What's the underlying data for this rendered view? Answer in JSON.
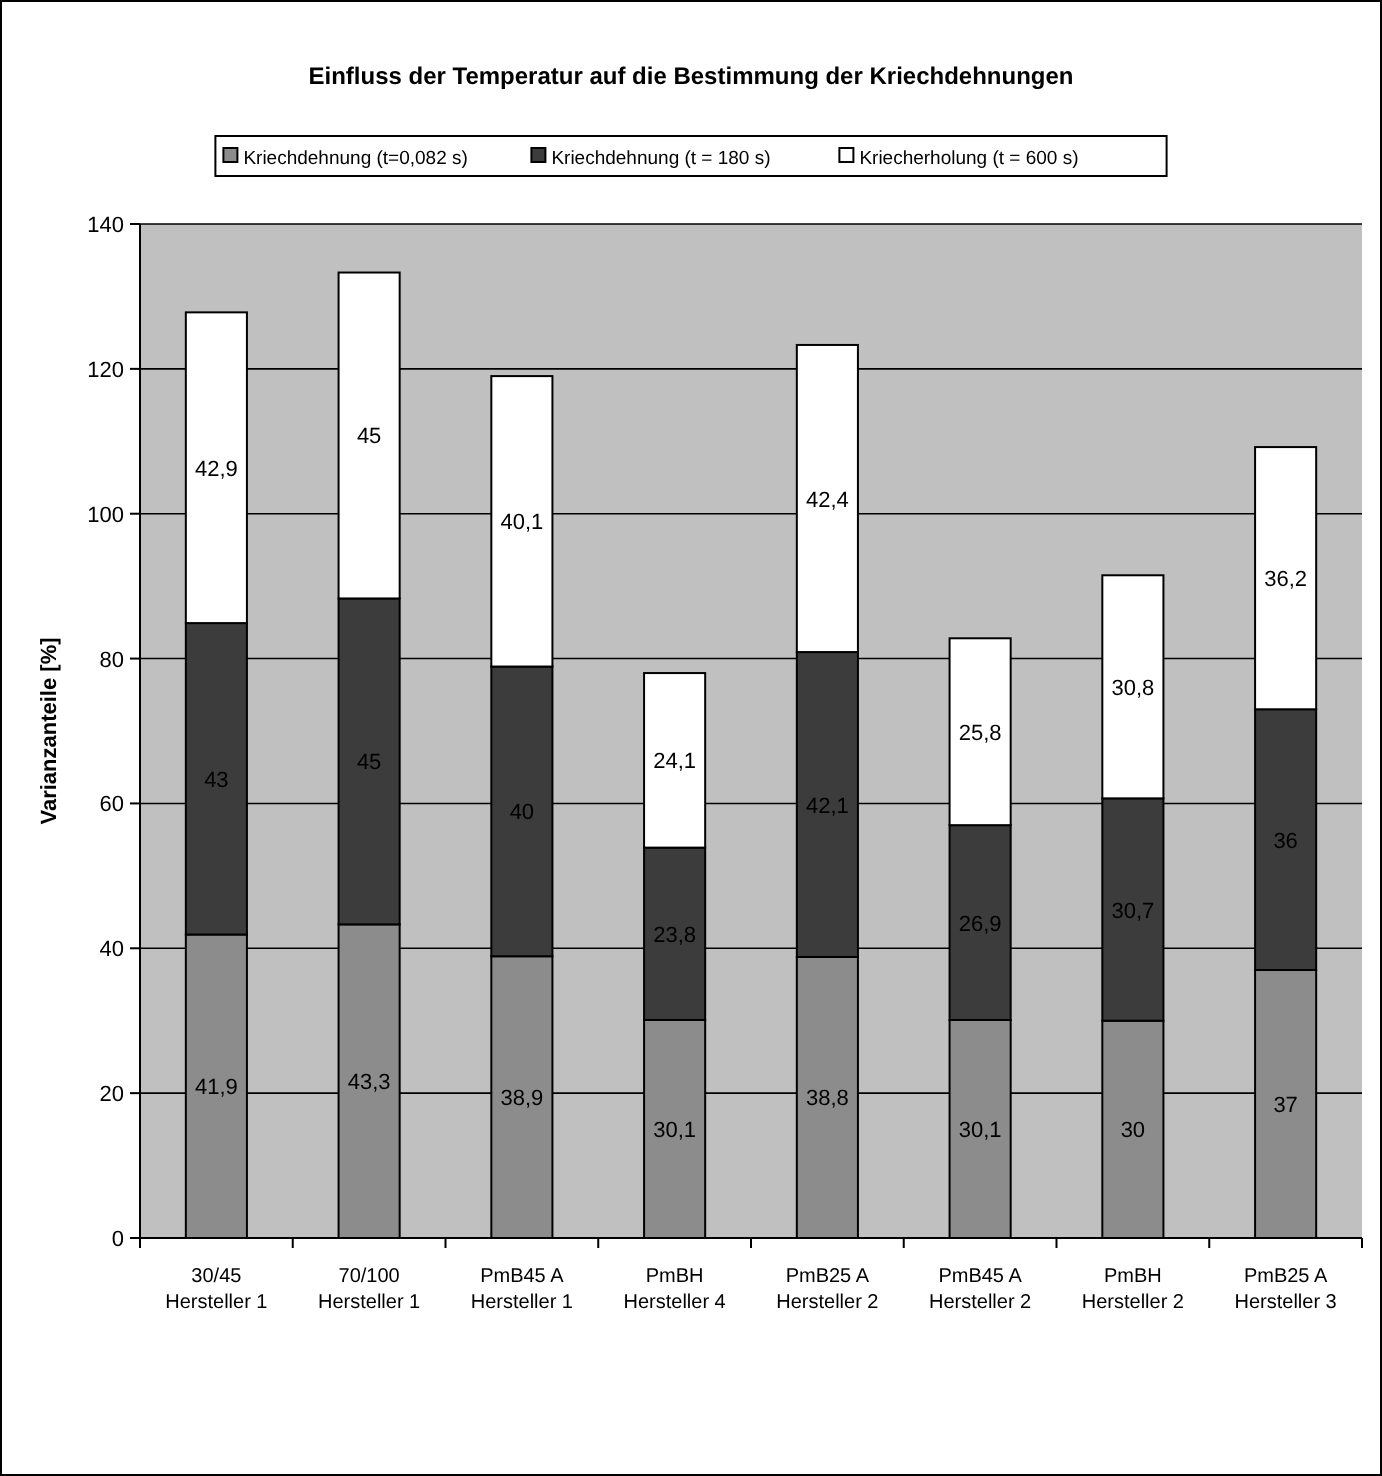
{
  "chart_data": {
    "type": "bar",
    "stacked": true,
    "title": "Einfluss der Temperatur auf die Bestimmung der Kriechdehnungen",
    "ylabel": "Varianzanteile [%]",
    "categories": [
      "30/45\nHersteller 1",
      "70/100\nHersteller 1",
      "PmB45 A\nHersteller 1",
      "PmBH\nHersteller 4",
      "PmB25 A\nHersteller 2",
      "PmB45 A\nHersteller 2",
      "PmBH\nHersteller 2",
      "PmB25 A\nHersteller 3"
    ],
    "series": [
      {
        "name": "Kriechdehnung (t=0,082 s)",
        "color": "#8c8c8c",
        "values": [
          41.9,
          43.3,
          38.9,
          30.1,
          38.8,
          30.1,
          30,
          37
        ],
        "value_labels": [
          "41,9",
          "43,3",
          "38,9",
          "30,1",
          "38,8",
          "30,1",
          "30",
          "37"
        ]
      },
      {
        "name": "Kriechdehnung (t = 180 s)",
        "color": "#3c3c3c",
        "values": [
          43,
          45,
          40,
          23.8,
          42.1,
          26.9,
          30.7,
          36
        ],
        "value_labels": [
          "43",
          "45",
          "40",
          "23,8",
          "42,1",
          "26,9",
          "30,7",
          "36"
        ]
      },
      {
        "name": "Kriecherholung (t = 600 s)",
        "color": "#ffffff",
        "values": [
          42.9,
          45,
          40.1,
          24.1,
          42.4,
          25.8,
          30.8,
          36.2
        ],
        "value_labels": [
          "42,9",
          "45",
          "40,1",
          "24,1",
          "42,4",
          "25,8",
          "30,8",
          "36,2"
        ]
      }
    ],
    "ylim": [
      0,
      140
    ],
    "yticks": [
      0,
      20,
      40,
      60,
      80,
      100,
      120,
      140
    ],
    "grid": "y",
    "legend": "top"
  }
}
